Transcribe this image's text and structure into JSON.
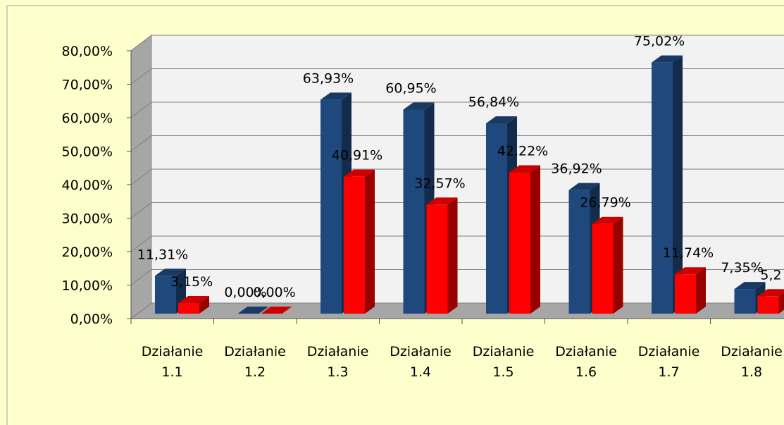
{
  "chart_data": {
    "type": "bar3d",
    "categories": [
      "Działanie 1.1",
      "Działanie 1.2",
      "Działanie 1.3",
      "Działanie 1.4",
      "Działanie 1.5",
      "Działanie 1.6",
      "Działanie 1.7",
      "Działanie 1.8"
    ],
    "series": [
      {
        "color": "#1f497d",
        "values": [
          11.31,
          0,
          63.93,
          60.95,
          56.84,
          36.92,
          75.02,
          7.35
        ],
        "value_labels": [
          "11,31%",
          "0,00%",
          "63,93%",
          "60,95%",
          "56,84%",
          "36,92%",
          "75,02%",
          "7,35%"
        ]
      },
      {
        "color": "#ff0000",
        "values": [
          3.15,
          0,
          40.91,
          32.57,
          42.22,
          26.79,
          11.74,
          5.2
        ],
        "value_labels": [
          "3,15%",
          "0,00%",
          "40,91%",
          "32,57%",
          "42,22%",
          "26,79%",
          "11,74%",
          "5,2"
        ]
      }
    ],
    "ylim": [
      0,
      80
    ],
    "yticks": [
      {
        "value": 0,
        "label": "0,00%"
      },
      {
        "value": 10,
        "label": "10,00%"
      },
      {
        "value": 20,
        "label": "20,00%"
      },
      {
        "value": 30,
        "label": "30,00%"
      },
      {
        "value": 40,
        "label": "40,00%"
      },
      {
        "value": 50,
        "label": "50,00%"
      },
      {
        "value": 60,
        "label": "60,00%"
      },
      {
        "value": 70,
        "label": "70,00%"
      },
      {
        "value": 80,
        "label": "80,00%"
      }
    ],
    "grid": true
  }
}
